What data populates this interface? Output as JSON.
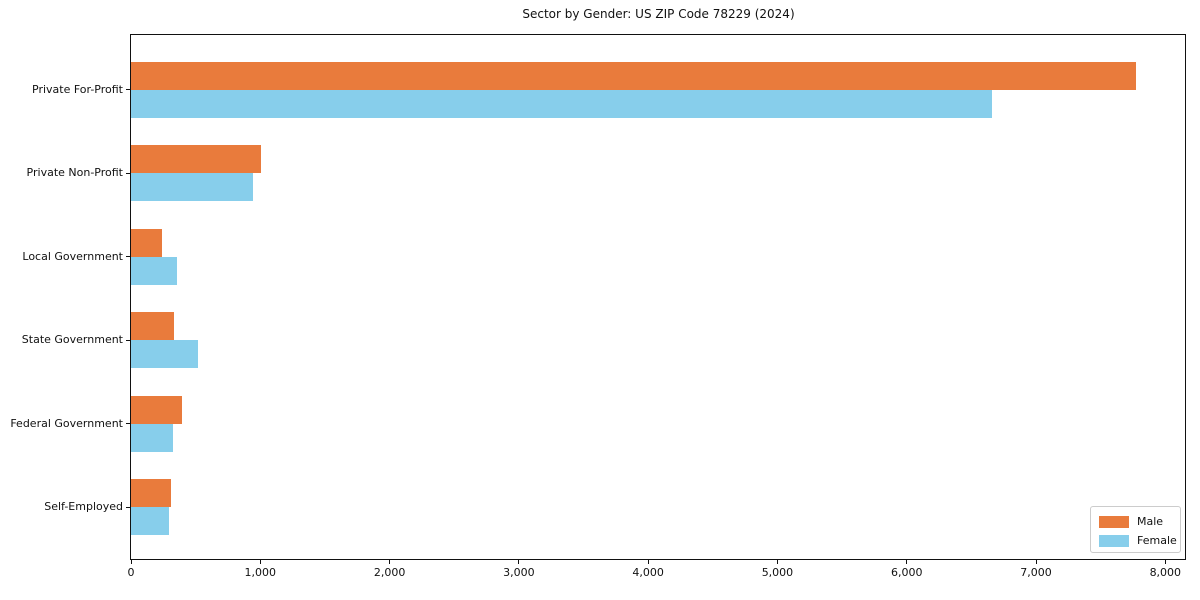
{
  "chart_data": {
    "type": "bar",
    "orientation": "horizontal",
    "title": "Sector by Gender: US ZIP Code 78229 (2024)",
    "categories": [
      "Private For-Profit",
      "Private Non-Profit",
      "Local Government",
      "State Government",
      "Federal Government",
      "Self-Employed"
    ],
    "series": [
      {
        "name": "Male",
        "color": "#e97b3c",
        "values": [
          7770,
          1005,
          240,
          335,
          395,
          310
        ]
      },
      {
        "name": "Female",
        "color": "#87ceeb",
        "values": [
          6660,
          940,
          355,
          520,
          325,
          295
        ]
      }
    ],
    "xlabel": "",
    "ylabel": "",
    "xlim": [
      0,
      8160
    ],
    "x_ticks": [
      0,
      1000,
      2000,
      3000,
      4000,
      5000,
      6000,
      7000,
      8000
    ],
    "x_tick_labels": [
      "0",
      "1,000",
      "2,000",
      "3,000",
      "4,000",
      "5,000",
      "6,000",
      "7,000",
      "8,000"
    ],
    "grid": false,
    "legend": {
      "position": "lower right",
      "entries": [
        {
          "label": "Male",
          "color": "#e97b3c"
        },
        {
          "label": "Female",
          "color": "#87ceeb"
        }
      ]
    },
    "frame_color": "#111111",
    "background_color": "#ffffff"
  }
}
